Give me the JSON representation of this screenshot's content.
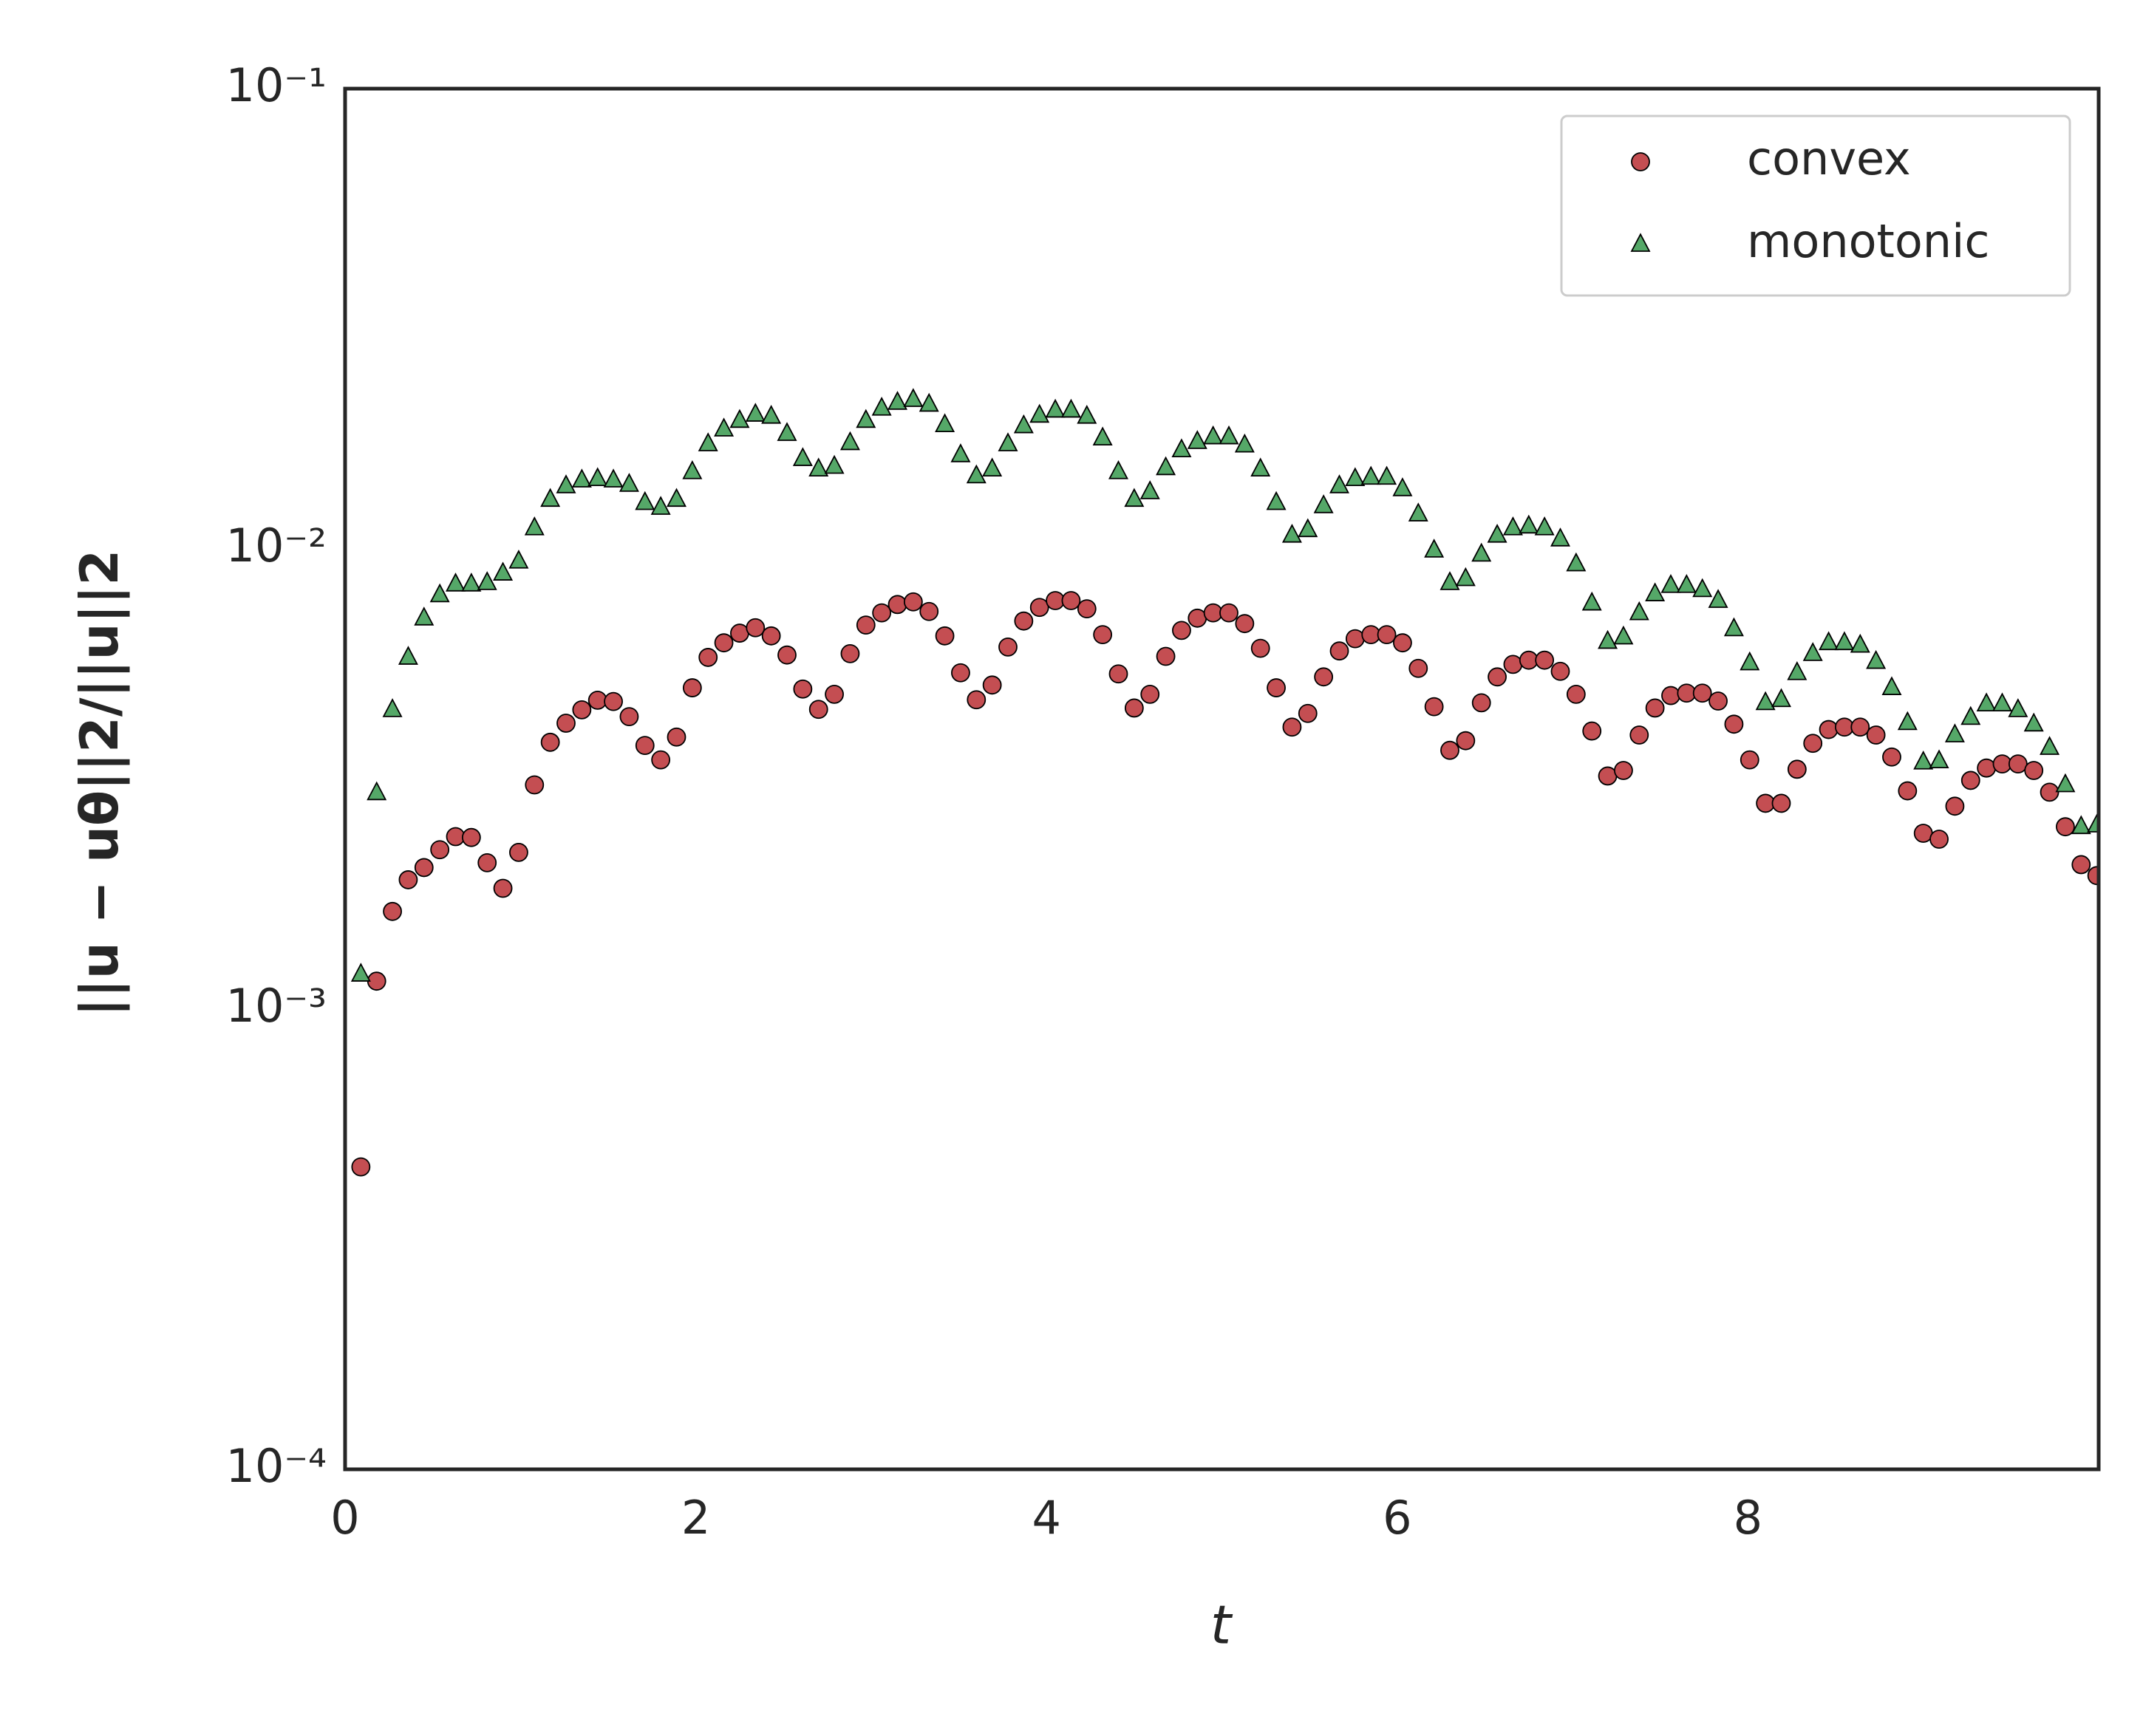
{
  "chart_data": {
    "type": "scatter",
    "xlabel": "t",
    "ylabel": "||u − uθ||2/||u||2",
    "xlim": [
      0,
      10
    ],
    "xticks": [
      0,
      2,
      4,
      6,
      8
    ],
    "ylim": [
      0.0001,
      0.1
    ],
    "yscale": "log",
    "yticks": [
      {
        "value": 0.0001,
        "label": "10⁻⁴"
      },
      {
        "value": 0.001,
        "label": "10⁻³"
      },
      {
        "value": 0.01,
        "label": "10⁻²"
      },
      {
        "value": 0.1,
        "label": "10⁻¹"
      }
    ],
    "grid": false,
    "legend": "upper right",
    "x": [
      0.09,
      0.18,
      0.27,
      0.36,
      0.45,
      0.54,
      0.63,
      0.72,
      0.81,
      0.9,
      0.99,
      1.08,
      1.17,
      1.26,
      1.35,
      1.44,
      1.53,
      1.62,
      1.71,
      1.8,
      1.89,
      1.98,
      2.07,
      2.16,
      2.25,
      2.34,
      2.43,
      2.52,
      2.61,
      2.7,
      2.79,
      2.88,
      2.97,
      3.06,
      3.15,
      3.24,
      3.33,
      3.42,
      3.51,
      3.6,
      3.69,
      3.78,
      3.87,
      3.96,
      4.05,
      4.14,
      4.23,
      4.32,
      4.41,
      4.5,
      4.59,
      4.68,
      4.77,
      4.86,
      4.95,
      5.04,
      5.13,
      5.22,
      5.31,
      5.4,
      5.49,
      5.58,
      5.67,
      5.76,
      5.85,
      5.94,
      6.03,
      6.12,
      6.21,
      6.3,
      6.39,
      6.48,
      6.57,
      6.66,
      6.75,
      6.84,
      6.93,
      7.02,
      7.11,
      7.2,
      7.29,
      7.38,
      7.47,
      7.56,
      7.65,
      7.74,
      7.83,
      7.92,
      8.01,
      8.1,
      8.19,
      8.28,
      8.37,
      8.46,
      8.55,
      8.64,
      8.73,
      8.82,
      8.91,
      9.0,
      9.09,
      9.18,
      9.27,
      9.36,
      9.45,
      9.54,
      9.63,
      9.72,
      9.81,
      9.9,
      9.99
    ],
    "series": [
      {
        "name": "convex",
        "marker": "circle",
        "color": "#c44e52",
        "values": [
          0.000454,
          0.00115,
          0.00163,
          0.00191,
          0.00203,
          0.00222,
          0.00237,
          0.00236,
          0.00208,
          0.00183,
          0.00219,
          0.00307,
          0.0038,
          0.00418,
          0.00447,
          0.00469,
          0.00466,
          0.00432,
          0.00374,
          0.00348,
          0.0039,
          0.00499,
          0.00581,
          0.00625,
          0.00656,
          0.00674,
          0.00647,
          0.00588,
          0.00496,
          0.00448,
          0.00483,
          0.00592,
          0.00683,
          0.00726,
          0.00757,
          0.00767,
          0.00731,
          0.00647,
          0.00538,
          0.0047,
          0.00506,
          0.00612,
          0.00697,
          0.00746,
          0.00772,
          0.00772,
          0.00741,
          0.00651,
          0.00535,
          0.00451,
          0.00483,
          0.00584,
          0.00665,
          0.00707,
          0.00726,
          0.00726,
          0.00688,
          0.00608,
          0.00499,
          0.0041,
          0.00439,
          0.00527,
          0.006,
          0.00638,
          0.00651,
          0.00651,
          0.00625,
          0.0055,
          0.00454,
          0.00365,
          0.00383,
          0.00463,
          0.00527,
          0.00561,
          0.00573,
          0.00573,
          0.00542,
          0.00483,
          0.00402,
          0.00321,
          0.0033,
          0.00394,
          0.00451,
          0.0048,
          0.00486,
          0.00486,
          0.00467,
          0.00416,
          0.00348,
          0.0028,
          0.0028,
          0.00332,
          0.00378,
          0.00405,
          0.0041,
          0.0041,
          0.00394,
          0.00353,
          0.00298,
          0.00241,
          0.00234,
          0.00276,
          0.00314,
          0.00334,
          0.00341,
          0.00341,
          0.0033,
          0.00296,
          0.00249,
          0.00206,
          0.00195
        ]
      },
      {
        "name": "monotonic",
        "marker": "triangle",
        "color": "#55a868",
        "values": [
          0.00119,
          0.00295,
          0.00447,
          0.00581,
          0.00707,
          0.00794,
          0.00838,
          0.00838,
          0.00844,
          0.00885,
          0.0094,
          0.0111,
          0.0128,
          0.0137,
          0.0141,
          0.0142,
          0.0141,
          0.0138,
          0.0126,
          0.0123,
          0.0128,
          0.0147,
          0.0169,
          0.0182,
          0.019,
          0.0196,
          0.0194,
          0.0178,
          0.0157,
          0.0149,
          0.0151,
          0.017,
          0.019,
          0.0202,
          0.0208,
          0.0211,
          0.0206,
          0.0186,
          0.016,
          0.0144,
          0.0149,
          0.0169,
          0.0185,
          0.0195,
          0.02,
          0.02,
          0.0194,
          0.0174,
          0.0147,
          0.0128,
          0.0133,
          0.015,
          0.0164,
          0.0171,
          0.0175,
          0.0175,
          0.0168,
          0.0149,
          0.0126,
          0.0107,
          0.011,
          0.0124,
          0.0137,
          0.0142,
          0.0143,
          0.0143,
          0.0135,
          0.0119,
          0.00993,
          0.00844,
          0.00861,
          0.00973,
          0.0107,
          0.0111,
          0.0112,
          0.0111,
          0.0105,
          0.00927,
          0.00762,
          0.00629,
          0.00643,
          0.00726,
          0.00798,
          0.00832,
          0.00832,
          0.00815,
          0.00772,
          0.0067,
          0.00565,
          0.00463,
          0.0047,
          0.00538,
          0.00592,
          0.00625,
          0.00625,
          0.00617,
          0.00569,
          0.00499,
          0.00419,
          0.00344,
          0.00346,
          0.00394,
          0.0043,
          0.0046,
          0.0046,
          0.00447,
          0.00416,
          0.0037,
          0.00307,
          0.00249,
          0.00251
        ]
      }
    ]
  }
}
